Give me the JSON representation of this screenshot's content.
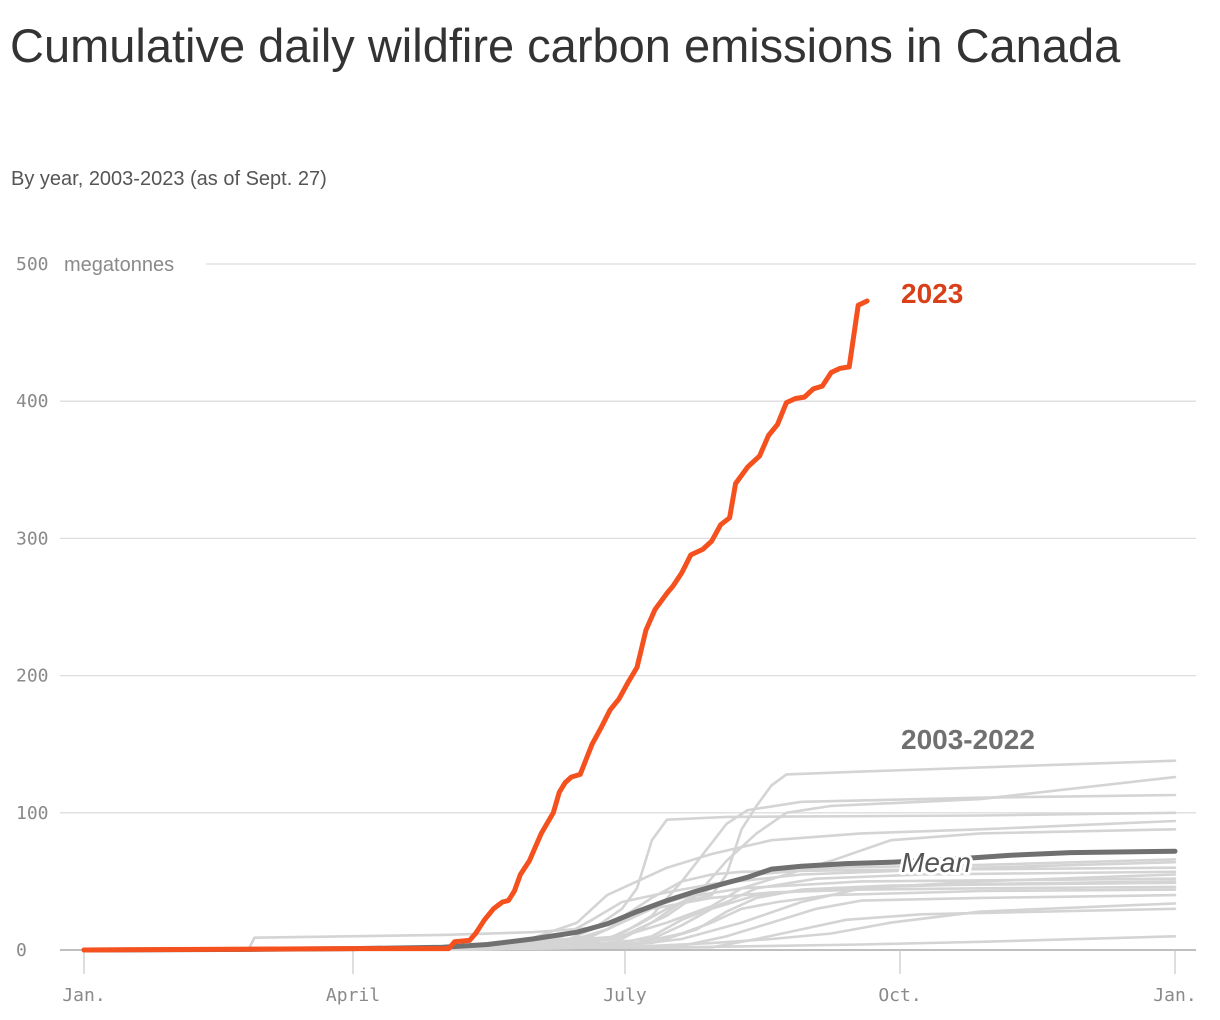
{
  "title": "Cumulative daily wildfire carbon emissions in Canada",
  "subtitle": "By year, 2003-2023 (as of Sept. 27)",
  "chart_data": {
    "type": "line",
    "y_unit": "megatonnes",
    "ylim": [
      0,
      500
    ],
    "y_ticks": [
      0,
      100,
      200,
      300,
      400,
      500
    ],
    "xlim_days": [
      0,
      365
    ],
    "x_ticks": [
      {
        "label": "Jan.",
        "day": 0
      },
      {
        "label": "April",
        "day": 90
      },
      {
        "label": "July",
        "day": 181
      },
      {
        "label": "Oct.",
        "day": 273
      },
      {
        "label": "Jan.",
        "day": 365
      }
    ],
    "grid": true,
    "labels": {
      "current": "2023",
      "history": "2003-2022",
      "mean": "Mean"
    },
    "current": {
      "name": "2023",
      "color": "#f5511e",
      "points": [
        [
          0,
          0
        ],
        [
          90,
          1
        ],
        [
          122,
          1
        ],
        [
          124,
          6
        ],
        [
          129,
          7
        ],
        [
          131,
          12
        ],
        [
          134,
          22
        ],
        [
          137,
          30
        ],
        [
          140,
          35
        ],
        [
          142,
          36
        ],
        [
          144,
          43
        ],
        [
          146,
          55
        ],
        [
          149,
          65
        ],
        [
          151,
          75
        ],
        [
          153,
          85
        ],
        [
          157,
          100
        ],
        [
          159,
          115
        ],
        [
          161,
          122
        ],
        [
          163,
          126
        ],
        [
          166,
          128
        ],
        [
          170,
          150
        ],
        [
          173,
          162
        ],
        [
          176,
          175
        ],
        [
          179,
          183
        ],
        [
          182,
          195
        ],
        [
          185,
          206
        ],
        [
          188,
          233
        ],
        [
          191,
          248
        ],
        [
          195,
          260
        ],
        [
          197,
          265
        ],
        [
          200,
          275
        ],
        [
          203,
          288
        ],
        [
          207,
          292
        ],
        [
          210,
          298
        ],
        [
          213,
          310
        ],
        [
          216,
          315
        ],
        [
          218,
          340
        ],
        [
          222,
          352
        ],
        [
          226,
          360
        ],
        [
          229,
          375
        ],
        [
          232,
          383
        ],
        [
          235,
          399
        ],
        [
          238,
          402
        ],
        [
          241,
          403
        ],
        [
          244,
          409
        ],
        [
          247,
          411
        ],
        [
          250,
          421
        ],
        [
          253,
          424
        ],
        [
          256,
          425
        ],
        [
          259,
          470
        ],
        [
          262,
          473
        ]
      ]
    },
    "mean": {
      "name": "Mean",
      "color": "#707070",
      "points": [
        [
          0,
          0
        ],
        [
          60,
          0.5
        ],
        [
          90,
          1
        ],
        [
          120,
          2
        ],
        [
          135,
          4
        ],
        [
          150,
          8
        ],
        [
          165,
          13
        ],
        [
          175,
          19
        ],
        [
          185,
          28
        ],
        [
          195,
          36
        ],
        [
          205,
          43
        ],
        [
          215,
          49
        ],
        [
          222,
          53
        ],
        [
          230,
          59
        ],
        [
          240,
          61
        ],
        [
          255,
          63
        ],
        [
          270,
          64
        ],
        [
          290,
          66
        ],
        [
          310,
          69
        ],
        [
          330,
          71
        ],
        [
          365,
          72
        ]
      ]
    },
    "history": [
      {
        "points": [
          [
            0,
            0
          ],
          [
            55,
            0
          ],
          [
            57,
            9
          ],
          [
            120,
            11
          ],
          [
            150,
            13
          ],
          [
            170,
            16
          ],
          [
            180,
            24
          ],
          [
            190,
            38
          ],
          [
            200,
            50
          ],
          [
            210,
            55
          ],
          [
            220,
            57
          ],
          [
            250,
            58
          ],
          [
            365,
            60
          ]
        ]
      },
      {
        "points": [
          [
            0,
            0
          ],
          [
            120,
            1
          ],
          [
            140,
            2
          ],
          [
            160,
            6
          ],
          [
            170,
            15
          ],
          [
            180,
            30
          ],
          [
            185,
            45
          ],
          [
            190,
            80
          ],
          [
            195,
            95
          ],
          [
            215,
            97
          ],
          [
            300,
            98
          ],
          [
            365,
            100
          ]
        ]
      },
      {
        "points": [
          [
            0,
            0
          ],
          [
            120,
            2
          ],
          [
            170,
            5
          ],
          [
            180,
            12
          ],
          [
            190,
            25
          ],
          [
            200,
            50
          ],
          [
            210,
            78
          ],
          [
            215,
            92
          ],
          [
            222,
            102
          ],
          [
            240,
            108
          ],
          [
            300,
            111
          ],
          [
            365,
            113
          ]
        ]
      },
      {
        "points": [
          [
            0,
            0
          ],
          [
            130,
            2
          ],
          [
            180,
            8
          ],
          [
            190,
            20
          ],
          [
            200,
            35
          ],
          [
            210,
            40
          ],
          [
            215,
            55
          ],
          [
            220,
            88
          ],
          [
            225,
            105
          ],
          [
            230,
            120
          ],
          [
            235,
            128
          ],
          [
            260,
            130
          ],
          [
            365,
            138
          ]
        ]
      },
      {
        "points": [
          [
            0,
            0
          ],
          [
            130,
            2
          ],
          [
            180,
            10
          ],
          [
            195,
            25
          ],
          [
            205,
            40
          ],
          [
            215,
            65
          ],
          [
            225,
            85
          ],
          [
            235,
            100
          ],
          [
            250,
            105
          ],
          [
            300,
            110
          ],
          [
            365,
            126
          ]
        ]
      },
      {
        "points": [
          [
            0,
            0
          ],
          [
            130,
            2
          ],
          [
            180,
            10
          ],
          [
            195,
            20
          ],
          [
            210,
            32
          ],
          [
            220,
            45
          ],
          [
            235,
            55
          ],
          [
            250,
            65
          ],
          [
            270,
            80
          ],
          [
            300,
            85
          ],
          [
            365,
            88
          ]
        ]
      },
      {
        "points": [
          [
            0,
            0
          ],
          [
            130,
            1
          ],
          [
            170,
            10
          ],
          [
            180,
            20
          ],
          [
            190,
            30
          ],
          [
            210,
            38
          ],
          [
            230,
            42
          ],
          [
            260,
            44
          ],
          [
            300,
            45
          ],
          [
            365,
            46
          ]
        ]
      },
      {
        "points": [
          [
            0,
            0
          ],
          [
            140,
            1
          ],
          [
            185,
            5
          ],
          [
            200,
            12
          ],
          [
            210,
            20
          ],
          [
            220,
            30
          ],
          [
            232,
            35
          ],
          [
            250,
            40
          ],
          [
            300,
            43
          ],
          [
            365,
            44
          ]
        ]
      },
      {
        "points": [
          [
            0,
            0
          ],
          [
            140,
            1
          ],
          [
            175,
            3
          ],
          [
            190,
            10
          ],
          [
            200,
            22
          ],
          [
            215,
            35
          ],
          [
            225,
            45
          ],
          [
            245,
            52
          ],
          [
            280,
            55
          ],
          [
            365,
            57
          ]
        ]
      },
      {
        "points": [
          [
            0,
            0
          ],
          [
            140,
            1
          ],
          [
            190,
            5
          ],
          [
            205,
            15
          ],
          [
            215,
            28
          ],
          [
            225,
            38
          ],
          [
            240,
            44
          ],
          [
            270,
            47
          ],
          [
            365,
            49
          ]
        ]
      },
      {
        "points": [
          [
            0,
            0
          ],
          [
            150,
            1
          ],
          [
            190,
            8
          ],
          [
            200,
            18
          ],
          [
            210,
            30
          ],
          [
            225,
            40
          ],
          [
            250,
            45
          ],
          [
            300,
            48
          ],
          [
            365,
            50
          ]
        ]
      },
      {
        "points": [
          [
            0,
            0
          ],
          [
            140,
            1
          ],
          [
            160,
            5
          ],
          [
            175,
            15
          ],
          [
            185,
            28
          ],
          [
            200,
            38
          ],
          [
            220,
            45
          ],
          [
            260,
            50
          ],
          [
            365,
            52
          ]
        ]
      },
      {
        "points": [
          [
            0,
            0
          ],
          [
            150,
            1
          ],
          [
            200,
            3
          ],
          [
            215,
            10
          ],
          [
            230,
            20
          ],
          [
            245,
            30
          ],
          [
            260,
            36
          ],
          [
            300,
            38
          ],
          [
            365,
            40
          ]
        ]
      },
      {
        "points": [
          [
            0,
            0
          ],
          [
            150,
            1
          ],
          [
            210,
            2
          ],
          [
            225,
            8
          ],
          [
            240,
            15
          ],
          [
            255,
            22
          ],
          [
            280,
            26
          ],
          [
            365,
            30
          ]
        ]
      },
      {
        "points": [
          [
            0,
            0
          ],
          [
            150,
            1
          ],
          [
            200,
            2
          ],
          [
            230,
            3
          ],
          [
            260,
            4
          ],
          [
            300,
            6
          ],
          [
            365,
            10
          ]
        ]
      },
      {
        "points": [
          [
            0,
            0
          ],
          [
            140,
            1
          ],
          [
            165,
            20
          ],
          [
            175,
            40
          ],
          [
            185,
            50
          ],
          [
            195,
            60
          ],
          [
            210,
            70
          ],
          [
            230,
            80
          ],
          [
            260,
            85
          ],
          [
            300,
            88
          ],
          [
            365,
            94
          ]
        ]
      },
      {
        "points": [
          [
            0,
            0
          ],
          [
            140,
            1
          ],
          [
            160,
            10
          ],
          [
            170,
            22
          ],
          [
            180,
            35
          ],
          [
            195,
            42
          ],
          [
            210,
            48
          ],
          [
            240,
            55
          ],
          [
            300,
            60
          ],
          [
            365,
            64
          ]
        ]
      },
      {
        "points": [
          [
            0,
            0
          ],
          [
            145,
            1
          ],
          [
            175,
            8
          ],
          [
            185,
            18
          ],
          [
            195,
            30
          ],
          [
            210,
            45
          ],
          [
            225,
            55
          ],
          [
            250,
            60
          ],
          [
            300,
            62
          ],
          [
            365,
            66
          ]
        ]
      },
      {
        "points": [
          [
            0,
            0
          ],
          [
            150,
            1
          ],
          [
            180,
            3
          ],
          [
            200,
            8
          ],
          [
            220,
            20
          ],
          [
            240,
            35
          ],
          [
            260,
            45
          ],
          [
            300,
            50
          ],
          [
            365,
            55
          ]
        ]
      },
      {
        "points": [
          [
            0,
            0
          ],
          [
            150,
            1
          ],
          [
            190,
            3
          ],
          [
            210,
            5
          ],
          [
            230,
            8
          ],
          [
            250,
            12
          ],
          [
            270,
            20
          ],
          [
            300,
            28
          ],
          [
            365,
            34
          ]
        ]
      }
    ]
  }
}
